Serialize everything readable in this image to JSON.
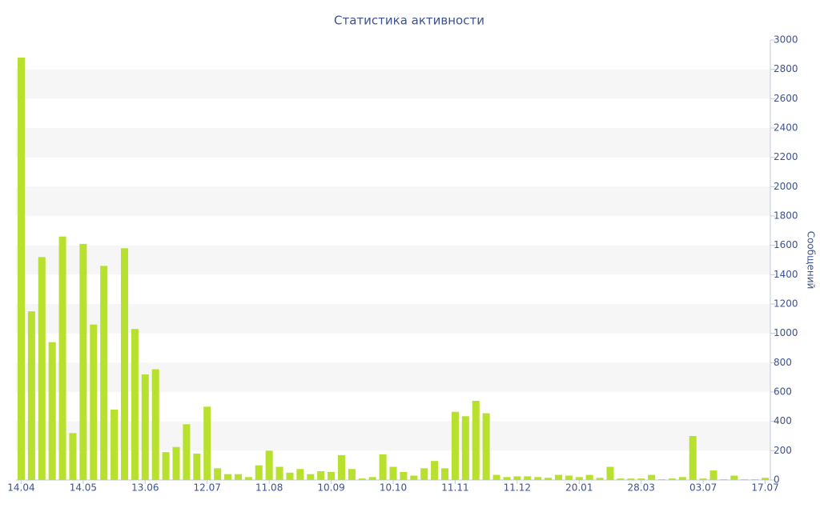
{
  "chart_data": {
    "type": "bar",
    "title": "Статистика активности",
    "y_label": "Сообщений",
    "color": "#b8e02f",
    "categories": [
      "14.04",
      null,
      null,
      null,
      null,
      null,
      "14.05",
      null,
      null,
      null,
      null,
      null,
      "13.06",
      null,
      null,
      null,
      null,
      null,
      "12.07",
      null,
      null,
      null,
      null,
      null,
      "11.08",
      null,
      null,
      null,
      null,
      null,
      "10.09",
      null,
      null,
      null,
      null,
      null,
      "10.10",
      null,
      null,
      null,
      null,
      null,
      "11.11",
      null,
      null,
      null,
      null,
      null,
      "11.12",
      null,
      null,
      null,
      null,
      null,
      "20.01",
      null,
      null,
      null,
      null,
      null,
      "28.03",
      null,
      null,
      null,
      null,
      null,
      "03.07",
      null,
      null,
      null,
      null,
      null,
      "17.07"
    ],
    "values": [
      2880,
      1150,
      1520,
      940,
      1660,
      320,
      1610,
      1060,
      1460,
      480,
      1580,
      1030,
      720,
      755,
      190,
      225,
      380,
      180,
      500,
      80,
      40,
      40,
      20,
      100,
      200,
      90,
      50,
      75,
      40,
      60,
      55,
      170,
      75,
      10,
      20,
      175,
      90,
      55,
      30,
      80,
      130,
      80,
      465,
      435,
      540,
      455,
      35,
      20,
      25,
      25,
      20,
      15,
      35,
      30,
      20,
      35,
      15,
      90,
      10,
      10,
      10,
      35,
      5,
      10,
      20,
      300,
      10,
      65,
      5,
      30,
      5,
      5,
      15
    ],
    "ylim": [
      0,
      3000
    ],
    "yticks": [
      0,
      200,
      400,
      600,
      800,
      1000,
      1200,
      1400,
      1600,
      1800,
      2000,
      2200,
      2400,
      2600,
      2800,
      3000
    ],
    "y_axis_side": "right",
    "grid": "bands"
  }
}
